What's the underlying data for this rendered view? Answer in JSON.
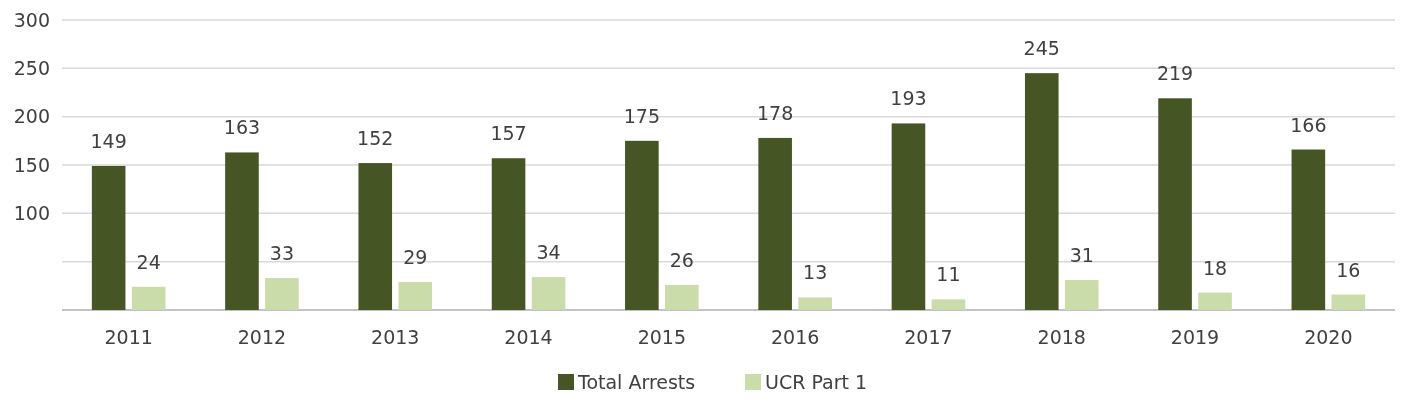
{
  "chart_data": {
    "type": "bar",
    "categories": [
      "2011",
      "2012",
      "2013",
      "2014",
      "2015",
      "2016",
      "2017",
      "2018",
      "2019",
      "2020"
    ],
    "series": [
      {
        "name": "Total Arrests",
        "color": "#455524",
        "values": [
          149,
          163,
          152,
          157,
          175,
          178,
          193,
          245,
          219,
          166
        ]
      },
      {
        "name": "UCR Part 1",
        "color": "#c9dcaa",
        "values": [
          24,
          33,
          29,
          34,
          26,
          13,
          11,
          31,
          18,
          16
        ]
      }
    ],
    "ylim": [
      0,
      300
    ],
    "yticks": [
      {
        "value": 0,
        "label": null
      },
      {
        "value": 50,
        "label": null
      },
      100,
      150,
      200,
      250,
      300
    ],
    "grid": "y",
    "legend": "bottom",
    "data_labels": true
  }
}
